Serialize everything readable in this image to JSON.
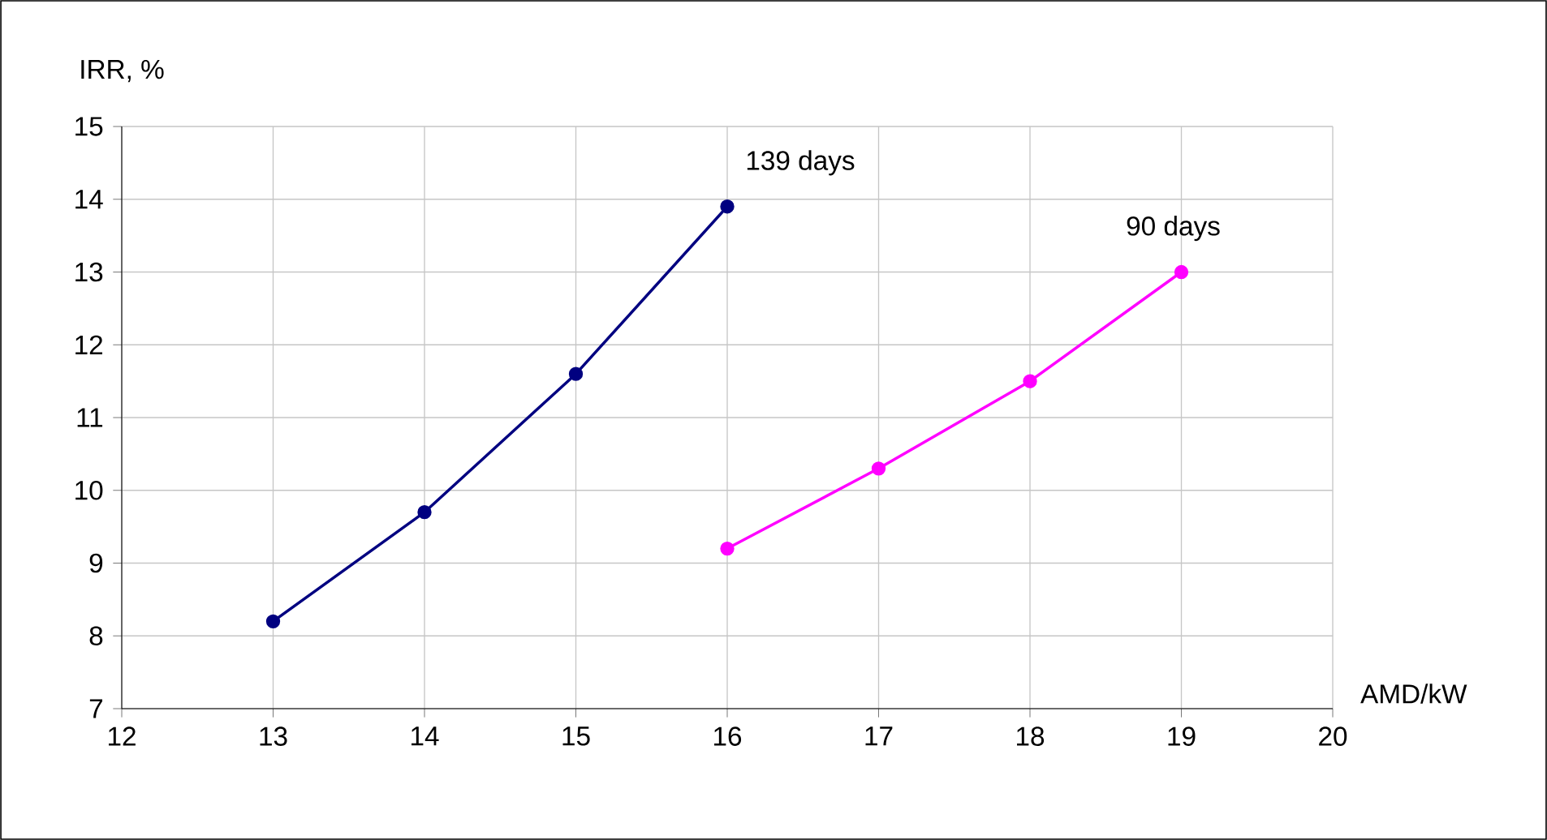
{
  "chart_data": {
    "type": "line",
    "xlabel": "AMD/kW",
    "ylabel": "IRR, %",
    "xlim": [
      12,
      20
    ],
    "xticks": [
      12,
      13,
      14,
      15,
      16,
      17,
      18,
      19,
      20
    ],
    "ylim": [
      7,
      15
    ],
    "yticks": [
      7,
      8,
      9,
      10,
      11,
      12,
      13,
      14,
      15
    ],
    "grid": true,
    "marker": "circle",
    "line_style": "solid",
    "series": [
      {
        "name": "139 days",
        "color": "#000080",
        "x": [
          13,
          14,
          15,
          16
        ],
        "values": [
          8.2,
          9.7,
          11.6,
          13.9
        ]
      },
      {
        "name": "90 days",
        "color": "#ff00ff",
        "x": [
          16,
          17,
          18,
          19
        ],
        "values": [
          9.2,
          10.3,
          11.5,
          13.0
        ]
      }
    ]
  }
}
